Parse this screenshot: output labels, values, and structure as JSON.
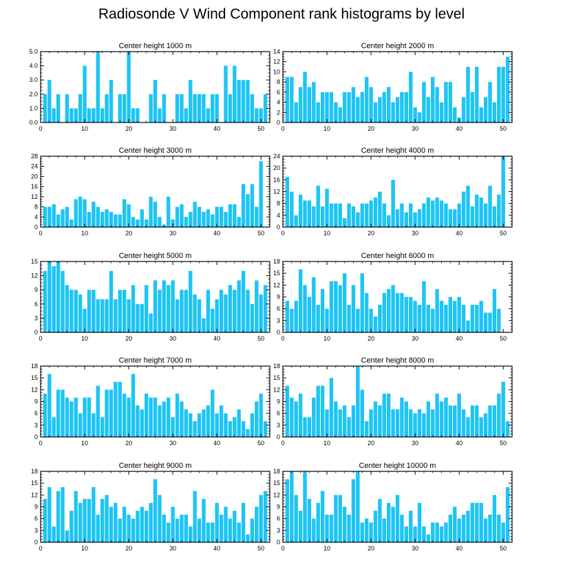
{
  "title": "Radiosonde V Wind Component rank histograms by level",
  "bar_color": "#1ec4f4",
  "chart_data": [
    {
      "type": "bar",
      "title": "Center height 1000 m",
      "xlim": [
        0,
        52
      ],
      "ylim": [
        0,
        5
      ],
      "xticks": [
        "0",
        "10",
        "20",
        "30",
        "40",
        "50"
      ],
      "yticks": [
        "0.0",
        "1.0",
        "2.0",
        "3.0",
        "4.0",
        "5.0"
      ],
      "categories": [
        0,
        1,
        2,
        3,
        4,
        5,
        6,
        7,
        8,
        9,
        10,
        11,
        12,
        13,
        14,
        15,
        16,
        17,
        18,
        19,
        20,
        21,
        22,
        23,
        24,
        25,
        26,
        27,
        28,
        29,
        30,
        31,
        32,
        33,
        34,
        35,
        36,
        37,
        38,
        39,
        40,
        41,
        42,
        43,
        44,
        45,
        46,
        47,
        48,
        49,
        50,
        51
      ],
      "values": [
        0,
        2,
        3,
        1,
        2,
        0,
        2,
        1,
        1,
        2,
        4,
        1,
        1,
        5,
        1,
        2,
        3,
        0,
        2,
        2,
        5,
        1,
        1,
        0,
        0,
        2,
        3,
        1,
        2,
        0,
        0,
        2,
        2,
        1,
        3,
        2,
        2,
        2,
        1,
        2,
        2,
        0,
        4,
        2,
        4,
        3,
        3,
        3,
        2,
        1,
        1,
        2
      ]
    },
    {
      "type": "bar",
      "title": "Center height 2000 m",
      "xlim": [
        0,
        52
      ],
      "ylim": [
        0,
        14
      ],
      "xticks": [
        "0",
        "10",
        "20",
        "30",
        "40",
        "50"
      ],
      "yticks": [
        "0",
        "2",
        "4",
        "6",
        "8",
        "10",
        "12",
        "14"
      ],
      "categories": [
        0,
        1,
        2,
        3,
        4,
        5,
        6,
        7,
        8,
        9,
        10,
        11,
        12,
        13,
        14,
        15,
        16,
        17,
        18,
        19,
        20,
        21,
        22,
        23,
        24,
        25,
        26,
        27,
        28,
        29,
        30,
        31,
        32,
        33,
        34,
        35,
        36,
        37,
        38,
        39,
        40,
        41,
        42,
        43,
        44,
        45,
        46,
        47,
        48,
        49,
        50,
        51
      ],
      "values": [
        0,
        9,
        9,
        4,
        7,
        10,
        7,
        8,
        4,
        6,
        6,
        6,
        4,
        3,
        6,
        6,
        7,
        5,
        6,
        9,
        7,
        4,
        5,
        6,
        7,
        4,
        5,
        6,
        6,
        10,
        3,
        2,
        8,
        5,
        9,
        7,
        4,
        8,
        8,
        3,
        1,
        5,
        11,
        6,
        11,
        3,
        5,
        8,
        4,
        11,
        11,
        13
      ]
    },
    {
      "type": "bar",
      "title": "Center height 3000 m",
      "xlim": [
        0,
        52
      ],
      "ylim": [
        0,
        28
      ],
      "xticks": [
        "0",
        "10",
        "20",
        "30",
        "40",
        "50"
      ],
      "yticks": [
        "0",
        "4",
        "8",
        "12",
        "16",
        "20",
        "24",
        "28"
      ],
      "categories": [
        0,
        1,
        2,
        3,
        4,
        5,
        6,
        7,
        8,
        9,
        10,
        11,
        12,
        13,
        14,
        15,
        16,
        17,
        18,
        19,
        20,
        21,
        22,
        23,
        24,
        25,
        26,
        27,
        28,
        29,
        30,
        31,
        32,
        33,
        34,
        35,
        36,
        37,
        38,
        39,
        40,
        41,
        42,
        43,
        44,
        45,
        46,
        47,
        48,
        49,
        50,
        51
      ],
      "values": [
        0,
        8,
        8,
        9,
        5,
        7,
        8,
        3,
        11,
        12,
        11,
        6,
        10,
        8,
        6,
        7,
        6,
        5,
        5,
        11,
        9,
        4,
        3,
        7,
        3,
        12,
        10,
        4,
        1,
        12,
        3,
        8,
        9,
        4,
        6,
        10,
        8,
        6,
        7,
        5,
        8,
        8,
        6,
        9,
        9,
        4,
        17,
        13,
        17,
        8,
        26,
        0
      ]
    },
    {
      "type": "bar",
      "title": "Center height 4000 m",
      "xlim": [
        0,
        52
      ],
      "ylim": [
        0,
        24
      ],
      "xticks": [
        "0",
        "10",
        "20",
        "30",
        "40",
        "50"
      ],
      "yticks": [
        "0",
        "4",
        "8",
        "12",
        "16",
        "20",
        "24"
      ],
      "categories": [
        0,
        1,
        2,
        3,
        4,
        5,
        6,
        7,
        8,
        9,
        10,
        11,
        12,
        13,
        14,
        15,
        16,
        17,
        18,
        19,
        20,
        21,
        22,
        23,
        24,
        25,
        26,
        27,
        28,
        29,
        30,
        31,
        32,
        33,
        34,
        35,
        36,
        37,
        38,
        39,
        40,
        41,
        42,
        43,
        44,
        45,
        46,
        47,
        48,
        49,
        50,
        51
      ],
      "values": [
        0,
        17,
        12,
        4,
        11,
        9,
        9,
        7,
        14,
        7,
        13,
        8,
        8,
        8,
        3,
        8,
        7,
        5,
        8,
        8,
        9,
        10,
        12,
        8,
        4,
        16,
        6,
        8,
        5,
        8,
        5,
        6,
        8,
        10,
        9,
        10,
        9,
        8,
        6,
        6,
        8,
        12,
        14,
        7,
        11,
        10,
        8,
        14,
        7,
        11,
        24,
        0
      ]
    },
    {
      "type": "bar",
      "title": "Center height 5000 m",
      "xlim": [
        0,
        52
      ],
      "ylim": [
        0,
        15
      ],
      "xticks": [
        "0",
        "10",
        "20",
        "30",
        "40",
        "50"
      ],
      "yticks": [
        "0",
        "3",
        "6",
        "9",
        "12",
        "15"
      ],
      "categories": [
        0,
        1,
        2,
        3,
        4,
        5,
        6,
        7,
        8,
        9,
        10,
        11,
        12,
        13,
        14,
        15,
        16,
        17,
        18,
        19,
        20,
        21,
        22,
        23,
        24,
        25,
        26,
        27,
        28,
        29,
        30,
        31,
        32,
        33,
        34,
        35,
        36,
        37,
        38,
        39,
        40,
        41,
        42,
        43,
        44,
        45,
        46,
        47,
        48,
        49,
        50,
        51
      ],
      "values": [
        0,
        13,
        15,
        14,
        15,
        13,
        10,
        9,
        9,
        8,
        5,
        9,
        9,
        7,
        7,
        7,
        13,
        7,
        9,
        9,
        7,
        10,
        6,
        6,
        10,
        4,
        11,
        9,
        11,
        10,
        11,
        7,
        9,
        9,
        13,
        8,
        7,
        3,
        9,
        5,
        7,
        9,
        8,
        10,
        9,
        11,
        13,
        9,
        6,
        11,
        8,
        10
      ]
    },
    {
      "type": "bar",
      "title": "Center height 6000 m",
      "xlim": [
        0,
        52
      ],
      "ylim": [
        0,
        18
      ],
      "xticks": [
        "0",
        "10",
        "20",
        "30",
        "40",
        "50"
      ],
      "yticks": [
        "0",
        "3",
        "6",
        "9",
        "12",
        "15",
        "18"
      ],
      "categories": [
        0,
        1,
        2,
        3,
        4,
        5,
        6,
        7,
        8,
        9,
        10,
        11,
        12,
        13,
        14,
        15,
        16,
        17,
        18,
        19,
        20,
        21,
        22,
        23,
        24,
        25,
        26,
        27,
        28,
        29,
        30,
        31,
        32,
        33,
        34,
        35,
        36,
        37,
        38,
        39,
        40,
        41,
        42,
        43,
        44,
        45,
        46,
        47,
        48,
        49,
        50,
        51
      ],
      "values": [
        0,
        8,
        6,
        8,
        16,
        12,
        9,
        14,
        7,
        11,
        6,
        13,
        13,
        12,
        15,
        7,
        12,
        6,
        15,
        10,
        6,
        4,
        7,
        10,
        11,
        12,
        10,
        10,
        9,
        9,
        8,
        7,
        13,
        7,
        6,
        11,
        8,
        7,
        9,
        8,
        9,
        7,
        3,
        7,
        7,
        8,
        5,
        5,
        11,
        6,
        0,
        0
      ]
    },
    {
      "type": "bar",
      "title": "Center height 7000 m",
      "xlim": [
        0,
        52
      ],
      "ylim": [
        0,
        18
      ],
      "xticks": [
        "0",
        "10",
        "20",
        "30",
        "40",
        "50"
      ],
      "yticks": [
        "0",
        "3",
        "6",
        "9",
        "12",
        "15",
        "18"
      ],
      "categories": [
        0,
        1,
        2,
        3,
        4,
        5,
        6,
        7,
        8,
        9,
        10,
        11,
        12,
        13,
        14,
        15,
        16,
        17,
        18,
        19,
        20,
        21,
        22,
        23,
        24,
        25,
        26,
        27,
        28,
        29,
        30,
        31,
        32,
        33,
        34,
        35,
        36,
        37,
        38,
        39,
        40,
        41,
        42,
        43,
        44,
        45,
        46,
        47,
        48,
        49,
        50,
        51
      ],
      "values": [
        0,
        11,
        16,
        5,
        12,
        12,
        10,
        9,
        10,
        6,
        10,
        10,
        6,
        13,
        5,
        12,
        12,
        14,
        14,
        11,
        10,
        16,
        8,
        7,
        11,
        10,
        10,
        8,
        9,
        10,
        5,
        11,
        9,
        7,
        6,
        4,
        6,
        7,
        8,
        12,
        6,
        8,
        6,
        4,
        5,
        7,
        4,
        2,
        6,
        9,
        11,
        4
      ]
    },
    {
      "type": "bar",
      "title": "Center height 8000 m",
      "xlim": [
        0,
        52
      ],
      "ylim": [
        0,
        18
      ],
      "xticks": [
        "0",
        "10",
        "20",
        "30",
        "40",
        "50"
      ],
      "yticks": [
        "0",
        "3",
        "6",
        "9",
        "12",
        "15",
        "18"
      ],
      "categories": [
        0,
        1,
        2,
        3,
        4,
        5,
        6,
        7,
        8,
        9,
        10,
        11,
        12,
        13,
        14,
        15,
        16,
        17,
        18,
        19,
        20,
        21,
        22,
        23,
        24,
        25,
        26,
        27,
        28,
        29,
        30,
        31,
        32,
        33,
        34,
        35,
        36,
        37,
        38,
        39,
        40,
        41,
        42,
        43,
        44,
        45,
        46,
        47,
        48,
        49,
        50,
        51
      ],
      "values": [
        0,
        13,
        10,
        9,
        11,
        5,
        5,
        10,
        13,
        13,
        7,
        15,
        9,
        7,
        8,
        5,
        8,
        18,
        12,
        4,
        7,
        9,
        8,
        11,
        11,
        7,
        7,
        10,
        9,
        7,
        6,
        7,
        6,
        9,
        7,
        11,
        9,
        10,
        8,
        8,
        11,
        7,
        5,
        8,
        8,
        5,
        6,
        8,
        8,
        11,
        14,
        4
      ]
    },
    {
      "type": "bar",
      "title": "Center height 9000 m",
      "xlim": [
        0,
        52
      ],
      "ylim": [
        0,
        18
      ],
      "xticks": [
        "0",
        "10",
        "20",
        "30",
        "40",
        "50"
      ],
      "yticks": [
        "0",
        "3",
        "6",
        "9",
        "12",
        "15",
        "18"
      ],
      "categories": [
        0,
        1,
        2,
        3,
        4,
        5,
        6,
        7,
        8,
        9,
        10,
        11,
        12,
        13,
        14,
        15,
        16,
        17,
        18,
        19,
        20,
        21,
        22,
        23,
        24,
        25,
        26,
        27,
        28,
        29,
        30,
        31,
        32,
        33,
        34,
        35,
        36,
        37,
        38,
        39,
        40,
        41,
        42,
        43,
        44,
        45,
        46,
        47,
        48,
        49,
        50,
        51
      ],
      "values": [
        0,
        11,
        14,
        4,
        13,
        14,
        3,
        8,
        13,
        10,
        11,
        11,
        14,
        7,
        11,
        12,
        9,
        10,
        6,
        9,
        7,
        6,
        8,
        9,
        8,
        10,
        16,
        12,
        7,
        5,
        9,
        6,
        7,
        7,
        4,
        13,
        6,
        11,
        5,
        5,
        10,
        7,
        9,
        6,
        8,
        5,
        10,
        2,
        6,
        9,
        12,
        13
      ]
    },
    {
      "type": "bar",
      "title": "Center height 10000 m",
      "xlim": [
        0,
        52
      ],
      "ylim": [
        0,
        18
      ],
      "xticks": [
        "0",
        "10",
        "20",
        "30",
        "40",
        "50"
      ],
      "yticks": [
        "0",
        "3",
        "6",
        "9",
        "12",
        "15",
        "18"
      ],
      "categories": [
        0,
        1,
        2,
        3,
        4,
        5,
        6,
        7,
        8,
        9,
        10,
        11,
        12,
        13,
        14,
        15,
        16,
        17,
        18,
        19,
        20,
        21,
        22,
        23,
        24,
        25,
        26,
        27,
        28,
        29,
        30,
        31,
        32,
        33,
        34,
        35,
        36,
        37,
        38,
        39,
        40,
        41,
        42,
        43,
        44,
        45,
        46,
        47,
        48,
        49,
        50,
        51
      ],
      "values": [
        0,
        16,
        18,
        12,
        8,
        18,
        11,
        6,
        10,
        13,
        7,
        7,
        12,
        12,
        9,
        7,
        16,
        18,
        5,
        6,
        5,
        8,
        11,
        6,
        10,
        9,
        12,
        7,
        4,
        8,
        4,
        10,
        4,
        2,
        5,
        5,
        4,
        5,
        7,
        9,
        6,
        7,
        8,
        10,
        10,
        10,
        6,
        7,
        12,
        7,
        5,
        14
      ]
    }
  ]
}
